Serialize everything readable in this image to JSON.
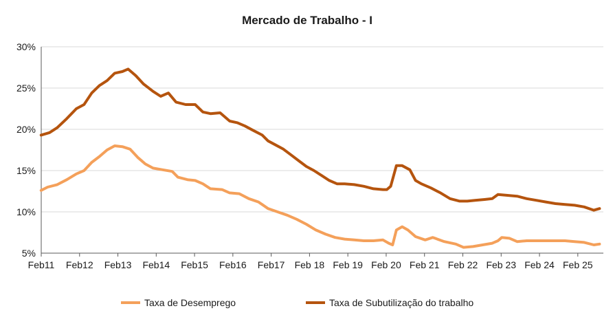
{
  "chart_data": {
    "type": "line",
    "title": "Mercado de Trabalho - I",
    "xlabel": "",
    "ylabel": "",
    "xlim": [
      2011.083,
      2025.75
    ],
    "ylim": [
      5,
      30
    ],
    "y_ticks": [
      "5%",
      "10%",
      "15%",
      "20%",
      "25%",
      "30%"
    ],
    "x_ticks": [
      {
        "label": "Feb11",
        "x": 2011.083
      },
      {
        "label": "Feb12",
        "x": 2012.083
      },
      {
        "label": "Feb13",
        "x": 2013.083
      },
      {
        "label": "Feb14",
        "x": 2014.083
      },
      {
        "label": "Feb15",
        "x": 2015.083
      },
      {
        "label": "Feb16",
        "x": 2016.083
      },
      {
        "label": "Feb17",
        "x": 2017.083
      },
      {
        "label": "Feb 18",
        "x": 2018.083
      },
      {
        "label": "Feb 19",
        "x": 2019.083
      },
      {
        "label": "Feb 20",
        "x": 2020.083
      },
      {
        "label": "Feb 21",
        "x": 2021.083
      },
      {
        "label": "Feb 22",
        "x": 2022.083
      },
      {
        "label": "Feb 23",
        "x": 2023.083
      },
      {
        "label": "Feb 24",
        "x": 2024.083
      },
      {
        "label": "Feb 25",
        "x": 2025.083
      }
    ],
    "grid": "horizontal",
    "legend_position": "bottom",
    "series": [
      {
        "name": "Taxa de Desemprego",
        "color": "#F4A05A",
        "points": [
          [
            2011.08,
            12.6
          ],
          [
            2011.25,
            13.0
          ],
          [
            2011.5,
            13.3
          ],
          [
            2011.75,
            13.9
          ],
          [
            2012.0,
            14.6
          ],
          [
            2012.2,
            15.0
          ],
          [
            2012.4,
            16.0
          ],
          [
            2012.6,
            16.7
          ],
          [
            2012.8,
            17.5
          ],
          [
            2013.0,
            18.0
          ],
          [
            2013.2,
            17.9
          ],
          [
            2013.4,
            17.6
          ],
          [
            2013.6,
            16.6
          ],
          [
            2013.8,
            15.8
          ],
          [
            2014.0,
            15.3
          ],
          [
            2014.25,
            15.1
          ],
          [
            2014.5,
            14.9
          ],
          [
            2014.65,
            14.2
          ],
          [
            2014.9,
            13.9
          ],
          [
            2015.1,
            13.8
          ],
          [
            2015.3,
            13.4
          ],
          [
            2015.5,
            12.8
          ],
          [
            2015.8,
            12.7
          ],
          [
            2016.0,
            12.3
          ],
          [
            2016.25,
            12.2
          ],
          [
            2016.5,
            11.6
          ],
          [
            2016.75,
            11.2
          ],
          [
            2017.0,
            10.4
          ],
          [
            2017.25,
            10.0
          ],
          [
            2017.5,
            9.6
          ],
          [
            2017.75,
            9.1
          ],
          [
            2018.0,
            8.5
          ],
          [
            2018.25,
            7.8
          ],
          [
            2018.5,
            7.3
          ],
          [
            2018.75,
            6.9
          ],
          [
            2019.0,
            6.7
          ],
          [
            2019.25,
            6.6
          ],
          [
            2019.5,
            6.5
          ],
          [
            2019.75,
            6.5
          ],
          [
            2020.0,
            6.6
          ],
          [
            2020.15,
            6.2
          ],
          [
            2020.25,
            6.0
          ],
          [
            2020.35,
            7.8
          ],
          [
            2020.5,
            8.2
          ],
          [
            2020.65,
            7.8
          ],
          [
            2020.85,
            7.0
          ],
          [
            2021.1,
            6.6
          ],
          [
            2021.3,
            6.9
          ],
          [
            2021.6,
            6.4
          ],
          [
            2021.9,
            6.1
          ],
          [
            2022.1,
            5.7
          ],
          [
            2022.35,
            5.8
          ],
          [
            2022.6,
            6.0
          ],
          [
            2022.85,
            6.2
          ],
          [
            2023.0,
            6.5
          ],
          [
            2023.1,
            6.9
          ],
          [
            2023.3,
            6.8
          ],
          [
            2023.5,
            6.4
          ],
          [
            2023.75,
            6.5
          ],
          [
            2024.0,
            6.5
          ],
          [
            2024.25,
            6.5
          ],
          [
            2024.5,
            6.5
          ],
          [
            2024.75,
            6.5
          ],
          [
            2025.0,
            6.4
          ],
          [
            2025.25,
            6.3
          ],
          [
            2025.5,
            6.0
          ],
          [
            2025.65,
            6.1
          ]
        ]
      },
      {
        "name": "Taxa de Subutilização do trabalho",
        "color": "#B5540E",
        "points": [
          [
            2011.08,
            19.3
          ],
          [
            2011.3,
            19.6
          ],
          [
            2011.5,
            20.2
          ],
          [
            2011.75,
            21.3
          ],
          [
            2012.0,
            22.5
          ],
          [
            2012.2,
            23.0
          ],
          [
            2012.4,
            24.4
          ],
          [
            2012.6,
            25.3
          ],
          [
            2012.8,
            25.9
          ],
          [
            2013.0,
            26.8
          ],
          [
            2013.2,
            27.0
          ],
          [
            2013.35,
            27.3
          ],
          [
            2013.55,
            26.5
          ],
          [
            2013.75,
            25.5
          ],
          [
            2014.0,
            24.6
          ],
          [
            2014.2,
            24.0
          ],
          [
            2014.4,
            24.4
          ],
          [
            2014.6,
            23.3
          ],
          [
            2014.85,
            23.0
          ],
          [
            2015.1,
            23.0
          ],
          [
            2015.3,
            22.1
          ],
          [
            2015.5,
            21.9
          ],
          [
            2015.75,
            22.0
          ],
          [
            2016.0,
            21.0
          ],
          [
            2016.2,
            20.8
          ],
          [
            2016.4,
            20.4
          ],
          [
            2016.6,
            19.9
          ],
          [
            2016.85,
            19.3
          ],
          [
            2017.0,
            18.6
          ],
          [
            2017.2,
            18.1
          ],
          [
            2017.4,
            17.6
          ],
          [
            2017.6,
            16.9
          ],
          [
            2017.8,
            16.2
          ],
          [
            2018.0,
            15.5
          ],
          [
            2018.2,
            15.0
          ],
          [
            2018.4,
            14.4
          ],
          [
            2018.6,
            13.8
          ],
          [
            2018.8,
            13.4
          ],
          [
            2019.0,
            13.4
          ],
          [
            2019.25,
            13.3
          ],
          [
            2019.5,
            13.1
          ],
          [
            2019.75,
            12.8
          ],
          [
            2020.0,
            12.7
          ],
          [
            2020.1,
            12.7
          ],
          [
            2020.2,
            13.1
          ],
          [
            2020.35,
            15.6
          ],
          [
            2020.5,
            15.6
          ],
          [
            2020.7,
            15.1
          ],
          [
            2020.85,
            13.8
          ],
          [
            2021.0,
            13.4
          ],
          [
            2021.25,
            12.9
          ],
          [
            2021.5,
            12.3
          ],
          [
            2021.75,
            11.6
          ],
          [
            2022.0,
            11.3
          ],
          [
            2022.2,
            11.3
          ],
          [
            2022.4,
            11.4
          ],
          [
            2022.65,
            11.5
          ],
          [
            2022.85,
            11.6
          ],
          [
            2023.0,
            12.1
          ],
          [
            2023.25,
            12.0
          ],
          [
            2023.5,
            11.9
          ],
          [
            2023.75,
            11.6
          ],
          [
            2024.0,
            11.4
          ],
          [
            2024.25,
            11.2
          ],
          [
            2024.5,
            11.0
          ],
          [
            2024.75,
            10.9
          ],
          [
            2025.0,
            10.8
          ],
          [
            2025.25,
            10.6
          ],
          [
            2025.5,
            10.2
          ],
          [
            2025.65,
            10.4
          ]
        ]
      }
    ]
  }
}
